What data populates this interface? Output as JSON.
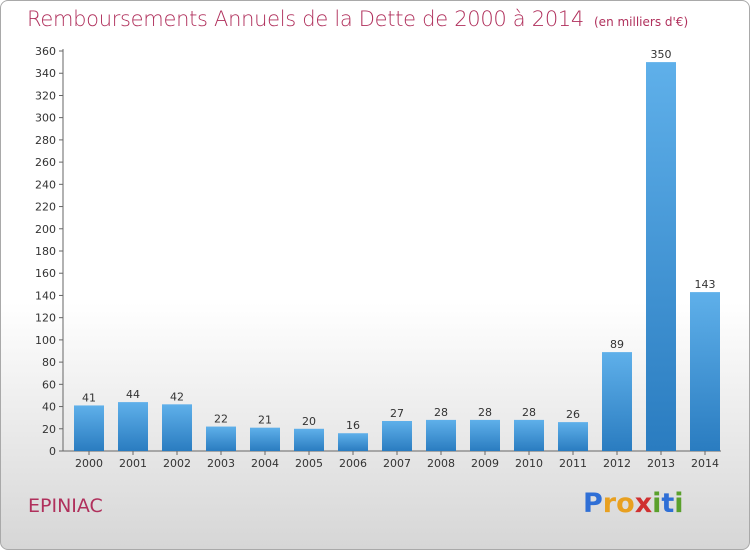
{
  "title": "Remboursements Annuels de la Dette de 2000 à 2014",
  "unit": "(en milliers d'€)",
  "place": "EPINIAC",
  "logo": {
    "letters": [
      "P",
      "r",
      "o",
      "x",
      "i",
      "t",
      "i"
    ],
    "colors": [
      "#2f6fd6",
      "#e8a020",
      "#e8a020",
      "#d03030",
      "#5aa02c",
      "#2f6fd6",
      "#5aa02c"
    ]
  },
  "colors": {
    "bar_light": "#5fb0ea",
    "bar_dark": "#2a7cc0",
    "text_accent": "#b0305c"
  },
  "chart_data": {
    "type": "bar",
    "categories": [
      "2000",
      "2001",
      "2002",
      "2003",
      "2004",
      "2005",
      "2006",
      "2007",
      "2008",
      "2009",
      "2010",
      "2011",
      "2012",
      "2013",
      "2014"
    ],
    "values": [
      41,
      44,
      42,
      22,
      21,
      20,
      16,
      27,
      28,
      28,
      28,
      26,
      89,
      350,
      143
    ],
    "ylim": [
      0,
      360
    ],
    "yticks": [
      0,
      20,
      40,
      60,
      80,
      100,
      120,
      140,
      160,
      180,
      200,
      220,
      240,
      260,
      280,
      300,
      320,
      340,
      360
    ],
    "grid": false
  }
}
